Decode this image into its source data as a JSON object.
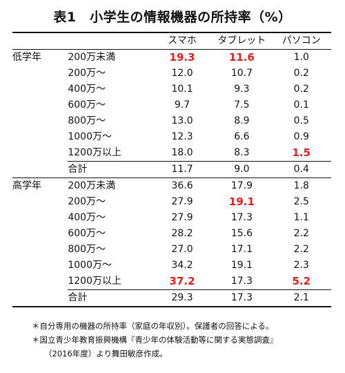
{
  "title": "表1　小学生の情報機器の所持率（%）",
  "columns": [
    "スマホ",
    "タブレット",
    "パソコン"
  ],
  "groups": [
    {
      "name": "低学年",
      "rows": [
        {
          "income": "200万未満",
          "values": [
            "19.3",
            "11.6",
            "1.0"
          ],
          "highlight": [
            true,
            true,
            false
          ]
        },
        {
          "income": "200万～",
          "values": [
            "12.0",
            "10.7",
            "0.2"
          ],
          "highlight": [
            false,
            false,
            false
          ]
        },
        {
          "income": "400万～",
          "values": [
            "10.1",
            "9.3",
            "0.2"
          ],
          "highlight": [
            false,
            false,
            false
          ]
        },
        {
          "income": "600万～",
          "values": [
            "9.7",
            "7.5",
            "0.1"
          ],
          "highlight": [
            false,
            false,
            false
          ]
        },
        {
          "income": "800万～",
          "values": [
            "13.0",
            "8.9",
            "0.5"
          ],
          "highlight": [
            false,
            false,
            false
          ]
        },
        {
          "income": "1000万～",
          "values": [
            "12.3",
            "6.6",
            "0.9"
          ],
          "highlight": [
            false,
            false,
            false
          ]
        },
        {
          "income": "1200万以上",
          "values": [
            "18.0",
            "8.3",
            "1.5"
          ],
          "highlight": [
            false,
            false,
            true
          ]
        }
      ],
      "total": {
        "label": "合計",
        "values": [
          "11.7",
          "9.0",
          "0.4"
        ]
      }
    },
    {
      "name": "高学年",
      "rows": [
        {
          "income": "200万未満",
          "values": [
            "36.6",
            "17.9",
            "1.8"
          ],
          "highlight": [
            false,
            false,
            false
          ]
        },
        {
          "income": "200万～",
          "values": [
            "27.9",
            "19.1",
            "2.5"
          ],
          "highlight": [
            false,
            true,
            false
          ]
        },
        {
          "income": "400万～",
          "values": [
            "27.9",
            "17.3",
            "1.1"
          ],
          "highlight": [
            false,
            false,
            false
          ]
        },
        {
          "income": "600万～",
          "values": [
            "28.2",
            "15.6",
            "2.2"
          ],
          "highlight": [
            false,
            false,
            false
          ]
        },
        {
          "income": "800万～",
          "values": [
            "27.0",
            "17.1",
            "2.2"
          ],
          "highlight": [
            false,
            false,
            false
          ]
        },
        {
          "income": "1000万～",
          "values": [
            "34.2",
            "19.1",
            "2.3"
          ],
          "highlight": [
            false,
            false,
            false
          ]
        },
        {
          "income": "1200万以上",
          "values": [
            "37.2",
            "17.3",
            "5.2"
          ],
          "highlight": [
            true,
            false,
            true
          ]
        }
      ],
      "total": {
        "label": "合計",
        "values": [
          "29.3",
          "17.3",
          "2.1"
        ]
      }
    }
  ],
  "notes": [
    "＊自分専用の機器の所持率（家庭の年収別）。保護者の回答による。",
    "＊国立青少年教育振興機構『青少年の体験活動等に関する実態調査』",
    "（2016年度）より舞田敏彦作成。"
  ],
  "colors": {
    "highlight": "#e31b1b",
    "text": "#111111"
  }
}
